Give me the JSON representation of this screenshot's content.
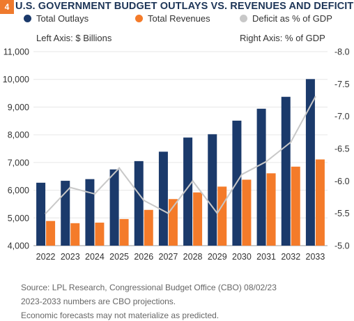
{
  "figure": {
    "number": "4",
    "title": "U.S. GOVERNMENT BUDGET OUTLAYS VS. REVENUES AND DEFICIT",
    "left_axis_note": "Left Axis: $ Billions",
    "right_axis_note": "Right Axis: % of GDP",
    "source_lines": [
      "Source: LPL Research, Congressional Budget Office (CBO) 08/02/23",
      "2023-2033 numbers are CBO projections.",
      "Economic forecasts may not materialize as predicted."
    ]
  },
  "colors": {
    "outlays": "#1b3a6b",
    "revenues": "#f47b2a",
    "deficit": "#c8c8c8",
    "title": "#1d3557",
    "badge": "#ef7a2d"
  },
  "chart_data": {
    "type": "bar",
    "categories": [
      "2022",
      "2023",
      "2024",
      "2025",
      "2026",
      "2027",
      "2028",
      "2029",
      "2030",
      "2031",
      "2032",
      "2033"
    ],
    "series": [
      {
        "name": "Total Outlays",
        "type": "bar",
        "axis": "left",
        "values": [
          6270,
          6340,
          6400,
          6750,
          7050,
          7390,
          7900,
          8020,
          8510,
          8940,
          9370,
          10010
        ]
      },
      {
        "name": "Total Revenues",
        "type": "bar",
        "axis": "left",
        "values": [
          4890,
          4810,
          4830,
          4960,
          5290,
          5680,
          5920,
          6130,
          6380,
          6610,
          6850,
          7110
        ]
      },
      {
        "name": "Deficit as % of GDP",
        "type": "line",
        "axis": "right",
        "values": [
          -5.5,
          -5.9,
          -5.8,
          -6.2,
          -5.7,
          -5.5,
          -6.0,
          -5.5,
          -6.1,
          -6.3,
          -6.6,
          -7.3
        ]
      }
    ],
    "left_axis": {
      "ylim": [
        4000,
        11000
      ],
      "ticks": [
        "4,000",
        "5,000",
        "6,000",
        "7,000",
        "8,000",
        "9,000",
        "10,000",
        "11,000"
      ]
    },
    "right_axis": {
      "ylim": [
        -5.0,
        -8.0
      ],
      "ticks": [
        "-5.0",
        "-5.5",
        "-6.0",
        "-6.5",
        "-7.0",
        "-7.5",
        "-8.0"
      ]
    },
    "grid": "horizontal",
    "legend_position": "top"
  }
}
